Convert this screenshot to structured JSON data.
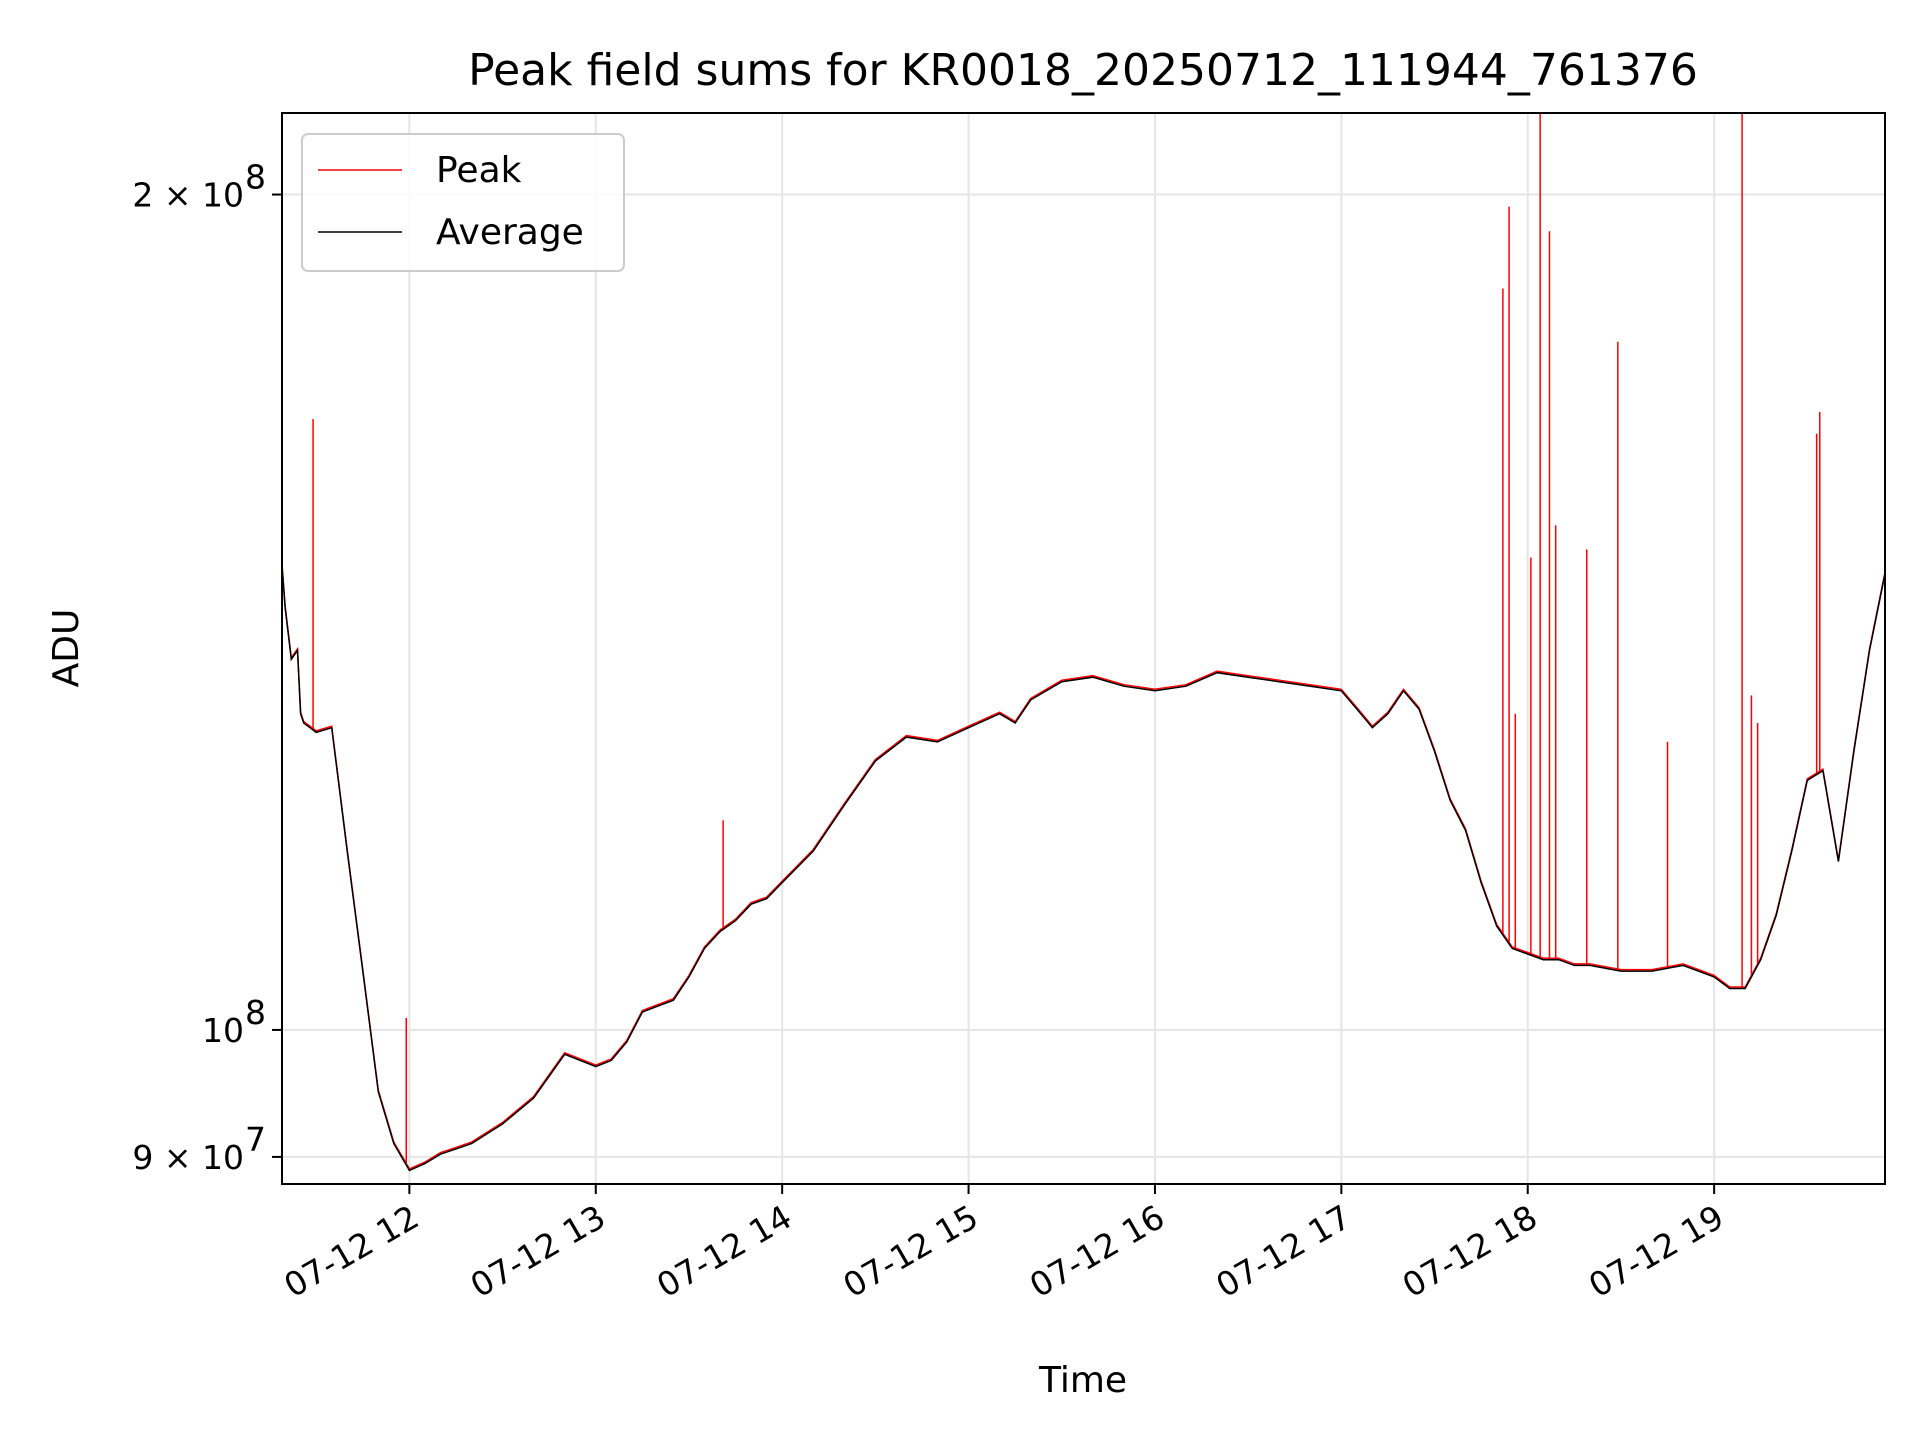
{
  "colors": {
    "peak": "#ff0000",
    "average": "#000000",
    "grid": "#e5e5e5",
    "background": "#ffffff"
  },
  "chart_data": {
    "type": "line",
    "title": "Peak field sums for KR0018_20250712_111944_761376",
    "xlabel": "Time",
    "ylabel": "ADU",
    "yscale": "log",
    "xlim": [
      "2025-07-12 11:19",
      "2025-07-12 19:55"
    ],
    "ylim": [
      88000000,
      214000000
    ],
    "grid": true,
    "legend_position": "top-left",
    "x_ticks": [
      {
        "value": "2025-07-12 12:00",
        "label": "07-12 12"
      },
      {
        "value": "2025-07-12 13:00",
        "label": "07-12 13"
      },
      {
        "value": "2025-07-12 14:00",
        "label": "07-12 14"
      },
      {
        "value": "2025-07-12 15:00",
        "label": "07-12 15"
      },
      {
        "value": "2025-07-12 16:00",
        "label": "07-12 16"
      },
      {
        "value": "2025-07-12 17:00",
        "label": "07-12 17"
      },
      {
        "value": "2025-07-12 18:00",
        "label": "07-12 18"
      },
      {
        "value": "2025-07-12 19:00",
        "label": "07-12 19"
      }
    ],
    "y_ticks": [
      {
        "value": 90000000,
        "base": "9 × 10",
        "exp": "7"
      },
      {
        "value": 100000000,
        "base": "10",
        "exp": "8"
      },
      {
        "value": 200000000,
        "base": "2 × 10",
        "exp": "8"
      }
    ],
    "series": [
      {
        "name": "Average",
        "x": [
          "2025-07-12 11:19",
          "2025-07-12 11:20",
          "2025-07-12 11:22",
          "2025-07-12 11:24",
          "2025-07-12 11:25",
          "2025-07-12 11:26",
          "2025-07-12 11:28",
          "2025-07-12 11:30",
          "2025-07-12 11:35",
          "2025-07-12 11:40",
          "2025-07-12 11:45",
          "2025-07-12 11:50",
          "2025-07-12 11:55",
          "2025-07-12 12:00",
          "2025-07-12 12:05",
          "2025-07-12 12:10",
          "2025-07-12 12:15",
          "2025-07-12 12:20",
          "2025-07-12 12:30",
          "2025-07-12 12:40",
          "2025-07-12 12:50",
          "2025-07-12 13:00",
          "2025-07-12 13:05",
          "2025-07-12 13:10",
          "2025-07-12 13:15",
          "2025-07-12 13:20",
          "2025-07-12 13:25",
          "2025-07-12 13:30",
          "2025-07-12 13:35",
          "2025-07-12 13:40",
          "2025-07-12 13:45",
          "2025-07-12 13:50",
          "2025-07-12 13:55",
          "2025-07-12 14:00",
          "2025-07-12 14:10",
          "2025-07-12 14:20",
          "2025-07-12 14:30",
          "2025-07-12 14:40",
          "2025-07-12 14:50",
          "2025-07-12 15:00",
          "2025-07-12 15:10",
          "2025-07-12 15:15",
          "2025-07-12 15:20",
          "2025-07-12 15:30",
          "2025-07-12 15:40",
          "2025-07-12 15:50",
          "2025-07-12 16:00",
          "2025-07-12 16:10",
          "2025-07-12 16:20",
          "2025-07-12 16:30",
          "2025-07-12 16:40",
          "2025-07-12 16:50",
          "2025-07-12 17:00",
          "2025-07-12 17:05",
          "2025-07-12 17:10",
          "2025-07-12 17:15",
          "2025-07-12 17:20",
          "2025-07-12 17:25",
          "2025-07-12 17:30",
          "2025-07-12 17:35",
          "2025-07-12 17:40",
          "2025-07-12 17:45",
          "2025-07-12 17:50",
          "2025-07-12 17:55",
          "2025-07-12 18:00",
          "2025-07-12 18:05",
          "2025-07-12 18:10",
          "2025-07-12 18:15",
          "2025-07-12 18:20",
          "2025-07-12 18:30",
          "2025-07-12 18:40",
          "2025-07-12 18:50",
          "2025-07-12 19:00",
          "2025-07-12 19:05",
          "2025-07-12 19:10",
          "2025-07-12 19:15",
          "2025-07-12 19:20",
          "2025-07-12 19:25",
          "2025-07-12 19:30",
          "2025-07-12 19:35",
          "2025-07-12 19:40",
          "2025-07-12 19:45",
          "2025-07-12 19:50",
          "2025-07-12 19:55"
        ],
        "y": [
          147000000,
          142000000,
          136000000,
          137000000,
          130000000,
          129000000,
          128500000,
          128000000,
          128500000,
          116000000,
          105000000,
          95000000,
          91000000,
          89000000,
          89500000,
          90200000,
          90600000,
          91000000,
          92500000,
          94500000,
          98000000,
          97000000,
          97500000,
          99000000,
          101500000,
          102000000,
          102500000,
          104500000,
          107000000,
          108500000,
          109500000,
          111000000,
          111500000,
          113000000,
          116000000,
          120500000,
          125000000,
          127500000,
          127000000,
          128500000,
          130000000,
          129000000,
          131500000,
          133500000,
          134000000,
          133000000,
          132500000,
          133000000,
          134500000,
          134000000,
          133500000,
          133000000,
          132500000,
          130500000,
          128500000,
          130000000,
          132500000,
          130500000,
          126000000,
          121000000,
          118000000,
          113000000,
          109000000,
          107000000,
          106500000,
          106000000,
          106000000,
          105500000,
          105500000,
          105000000,
          105000000,
          105500000,
          104500000,
          103500000,
          103500000,
          106000000,
          110000000,
          116000000,
          123000000,
          124000000,
          115000000,
          126000000,
          137000000,
          146000000
        ]
      },
      {
        "name": "Peak",
        "x": [
          "2025-07-12 11:29",
          "2025-07-12 11:59",
          "2025-07-12 13:41",
          "2025-07-12 17:52",
          "2025-07-12 17:54",
          "2025-07-12 17:56",
          "2025-07-12 18:01",
          "2025-07-12 18:04",
          "2025-07-12 18:07",
          "2025-07-12 18:09",
          "2025-07-12 18:19",
          "2025-07-12 18:29",
          "2025-07-12 18:45",
          "2025-07-12 19:09",
          "2025-07-12 19:12",
          "2025-07-12 19:14",
          "2025-07-12 19:33",
          "2025-07-12 19:34"
        ],
        "y": [
          166000000,
          101000000,
          119000000,
          185000000,
          198000000,
          130000000,
          148000000,
          214000000,
          194000000,
          152000000,
          149000000,
          177000000,
          127000000,
          214000000,
          132000000,
          129000000,
          164000000,
          167000000
        ]
      }
    ]
  }
}
